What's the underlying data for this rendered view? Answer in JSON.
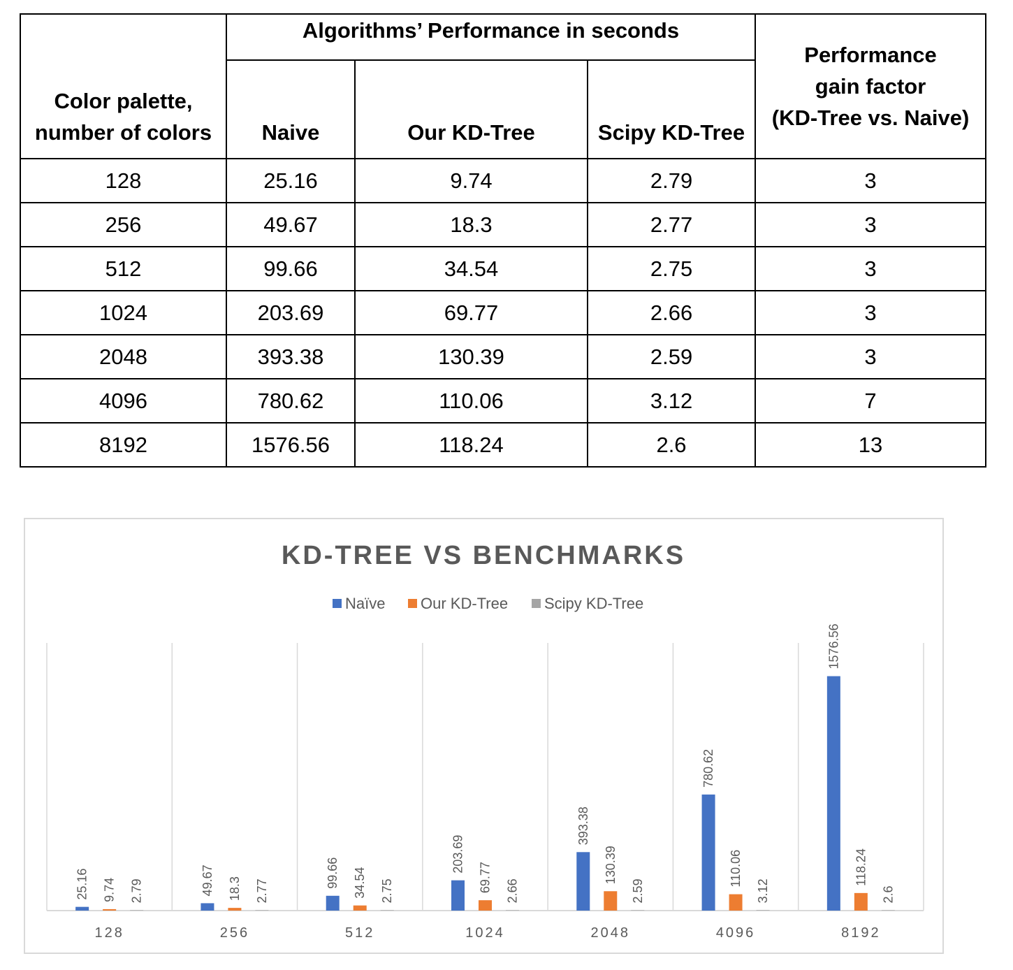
{
  "table": {
    "group_header": "Algorithms’ Performance in seconds",
    "col_palette_line1": "Color palette,",
    "col_palette_line2": "number of colors",
    "col_naive": "Naive",
    "col_our": "Our KD-Tree",
    "col_scipy": "Scipy KD-Tree",
    "col_gain_line1": "Performance",
    "col_gain_line2": "gain factor",
    "col_gain_line3": "(KD-Tree vs. Naive)",
    "rows": [
      {
        "colors": "128",
        "naive": "25.16",
        "our": "9.74",
        "scipy": "2.79",
        "gain": "3"
      },
      {
        "colors": "256",
        "naive": "49.67",
        "our": "18.3",
        "scipy": "2.77",
        "gain": "3"
      },
      {
        "colors": "512",
        "naive": "99.66",
        "our": "34.54",
        "scipy": "2.75",
        "gain": "3"
      },
      {
        "colors": "1024",
        "naive": "203.69",
        "our": "69.77",
        "scipy": "2.66",
        "gain": "3"
      },
      {
        "colors": "2048",
        "naive": "393.38",
        "our": "130.39",
        "scipy": "2.59",
        "gain": "3"
      },
      {
        "colors": "4096",
        "naive": "780.62",
        "our": "110.06",
        "scipy": "3.12",
        "gain": "7"
      },
      {
        "colors": "8192",
        "naive": "1576.56",
        "our": "118.24",
        "scipy": "2.6",
        "gain": "13"
      }
    ]
  },
  "chart_data": {
    "type": "bar",
    "title": "KD-TREE  VS BENCHMARKS",
    "categories": [
      "128",
      "256",
      "512",
      "1024",
      "2048",
      "4096",
      "8192"
    ],
    "series": [
      {
        "name": "Naïve",
        "color": "#4472C4",
        "values": [
          25.16,
          49.67,
          99.66,
          203.69,
          393.38,
          780.62,
          1576.56
        ]
      },
      {
        "name": "Our KD-Tree",
        "color": "#ED7D31",
        "values": [
          9.74,
          18.3,
          34.54,
          69.77,
          130.39,
          110.06,
          118.24
        ]
      },
      {
        "name": "Scipy KD-Tree",
        "color": "#A5A5A5",
        "values": [
          2.79,
          2.77,
          2.75,
          2.66,
          2.59,
          3.12,
          2.6
        ]
      }
    ],
    "data_labels": true,
    "legend_position": "top",
    "grid": "vertical category separators",
    "ylim": [
      0,
      1800
    ]
  }
}
